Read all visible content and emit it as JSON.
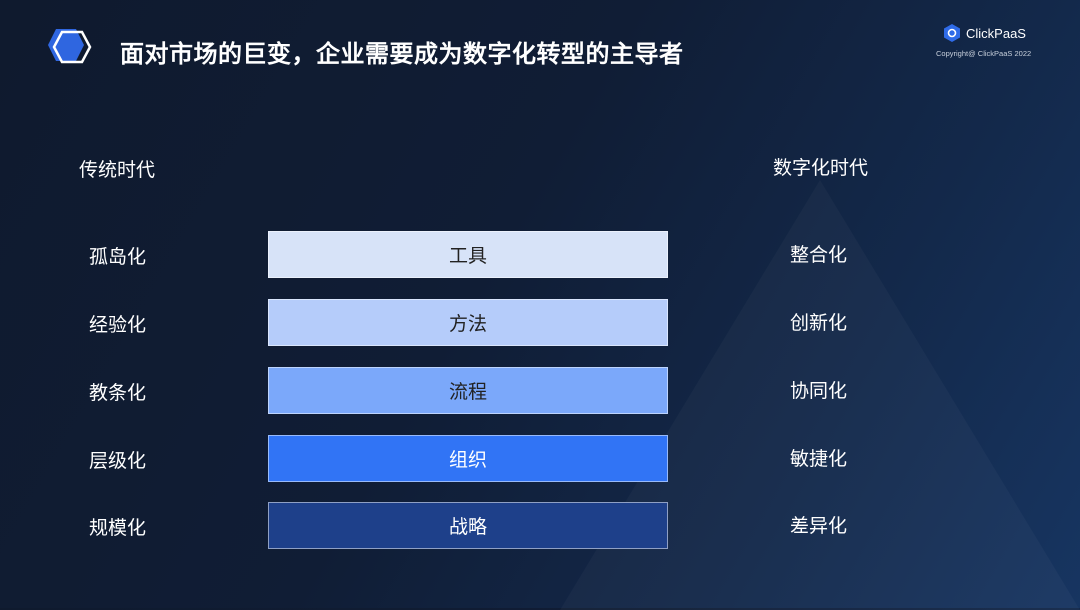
{
  "title": "面对市场的巨变，企业需要成为数字化转型的主导者",
  "brand": {
    "name": "ClickPaaS",
    "copyright": "Copyright@ ClickPaaS 2022"
  },
  "left_header": "传统时代",
  "right_header": "数字化时代",
  "rows": [
    {
      "left": "孤岛化",
      "center": "工具",
      "right": "整合化",
      "color": "#d7e3f8",
      "text_color": "#222222"
    },
    {
      "left": "经验化",
      "center": "方法",
      "right": "创新化",
      "color": "#b5ccfa",
      "text_color": "#222222"
    },
    {
      "left": "教条化",
      "center": "流程",
      "right": "协同化",
      "color": "#7ba8fa",
      "text_color": "#222222"
    },
    {
      "left": "层级化",
      "center": "组织",
      "right": "敏捷化",
      "color": "#3174f5",
      "text_color": "#ffffff"
    },
    {
      "left": "规模化",
      "center": "战略",
      "right": "差异化",
      "color": "#1e408a",
      "text_color": "#ffffff"
    }
  ]
}
